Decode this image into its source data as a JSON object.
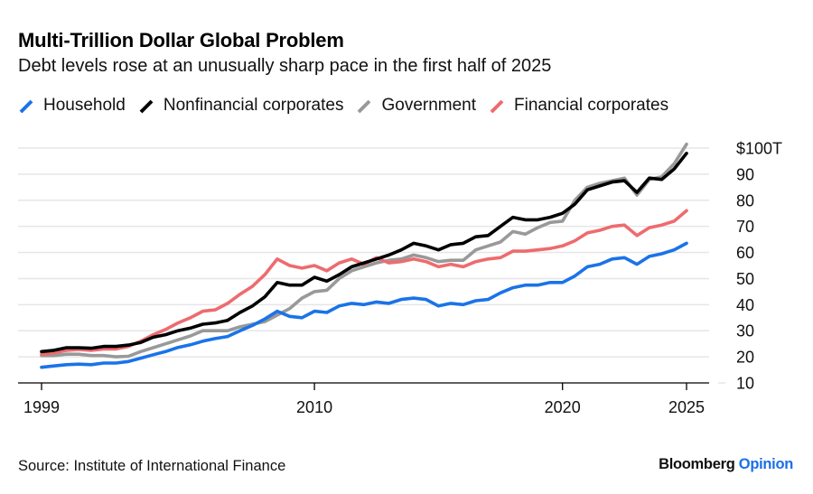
{
  "header": {
    "title": "Multi-Trillion Dollar Global Problem",
    "subtitle": "Debt levels rose at an unusually sharp pace in the first half of 2025"
  },
  "footer": {
    "source": "Source: Institute of International Finance",
    "brand_primary": "Bloomberg",
    "brand_secondary": "Opinion"
  },
  "colors": {
    "household": "#1a73e8",
    "nonfinancial": "#000000",
    "government": "#999999",
    "financial": "#ee6b6e",
    "grid": "#e6e6e6",
    "axis": "#000000"
  },
  "chart_data": {
    "type": "line",
    "title": "Multi-Trillion Dollar Global Problem",
    "subtitle": "Debt levels rose at an unusually sharp pace in the first half of 2025",
    "xlabel": "",
    "ylabel": "",
    "y_unit_prefix": "$",
    "y_unit_suffix": "T",
    "xlim": [
      1999,
      2025.6
    ],
    "ylim": [
      10,
      100
    ],
    "x_ticks": [
      1999,
      2010,
      2020,
      2025
    ],
    "x_tick_labels": [
      "1999",
      "2010",
      "2020",
      "2025"
    ],
    "y_ticks": [
      10,
      20,
      30,
      40,
      50,
      60,
      70,
      80,
      90,
      100
    ],
    "y_tick_labels": [
      "10",
      "20",
      "30",
      "40",
      "50",
      "60",
      "70",
      "80",
      "90",
      "$100T"
    ],
    "grid": true,
    "legend_position": "top-left",
    "x": [
      1999.0,
      1999.5,
      2000.0,
      2000.5,
      2001.0,
      2001.5,
      2002.0,
      2002.5,
      2003.0,
      2003.5,
      2004.0,
      2004.5,
      2005.0,
      2005.5,
      2006.0,
      2006.5,
      2007.0,
      2007.5,
      2008.0,
      2008.5,
      2009.0,
      2009.5,
      2010.0,
      2010.5,
      2011.0,
      2011.5,
      2012.0,
      2012.5,
      2013.0,
      2013.5,
      2014.0,
      2014.5,
      2015.0,
      2015.5,
      2016.0,
      2016.5,
      2017.0,
      2017.5,
      2018.0,
      2018.5,
      2019.0,
      2019.5,
      2020.0,
      2020.5,
      2021.0,
      2021.5,
      2022.0,
      2022.5,
      2023.0,
      2023.5,
      2024.0,
      2024.5,
      2025.0
    ],
    "series": [
      {
        "name": "Household",
        "color": "#1a73e8",
        "values": [
          16.0,
          16.5,
          17.0,
          17.2,
          17.0,
          17.6,
          17.6,
          18.2,
          19.5,
          20.8,
          22.0,
          23.6,
          24.6,
          26.0,
          27.0,
          27.8,
          30.0,
          32.0,
          34.5,
          37.5,
          35.5,
          35.0,
          37.5,
          37.0,
          39.5,
          40.5,
          40.0,
          41.0,
          40.5,
          42.0,
          42.5,
          42.0,
          39.5,
          40.5,
          40.0,
          41.5,
          42.0,
          44.5,
          46.5,
          47.5,
          47.5,
          48.5,
          48.5,
          51.0,
          54.5,
          55.5,
          57.5,
          58.0,
          55.5,
          58.5,
          59.5,
          61.0,
          63.5
        ]
      },
      {
        "name": "Nonfinancial corporates",
        "color": "#000000",
        "values": [
          22.0,
          22.5,
          23.5,
          23.5,
          23.3,
          24.0,
          24.0,
          24.5,
          25.5,
          27.5,
          28.5,
          30.0,
          31.0,
          32.5,
          33.0,
          34.0,
          37.0,
          39.5,
          43.0,
          48.5,
          47.5,
          47.5,
          50.5,
          49.0,
          51.5,
          54.5,
          56.0,
          57.5,
          59.0,
          61.0,
          63.5,
          62.5,
          61.0,
          63.0,
          63.5,
          66.0,
          66.5,
          70.0,
          73.5,
          72.5,
          72.5,
          73.5,
          75.0,
          78.5,
          84.0,
          85.5,
          87.0,
          87.5,
          83.0,
          88.5,
          88.0,
          92.0,
          98.0
        ]
      },
      {
        "name": "Government",
        "color": "#999999",
        "values": [
          20.5,
          20.5,
          21.0,
          21.0,
          20.5,
          20.5,
          20.0,
          20.2,
          22.0,
          23.5,
          25.0,
          26.5,
          28.0,
          30.0,
          30.0,
          30.0,
          31.5,
          32.5,
          33.5,
          36.0,
          38.5,
          42.5,
          45.0,
          45.5,
          50.0,
          53.0,
          54.5,
          56.0,
          57.0,
          57.5,
          59.0,
          58.0,
          56.5,
          57.0,
          57.0,
          61.0,
          62.5,
          64.0,
          68.0,
          67.0,
          69.5,
          71.5,
          72.0,
          80.0,
          85.0,
          86.5,
          87.5,
          88.5,
          82.0,
          88.0,
          89.0,
          94.0,
          101.5
        ]
      },
      {
        "name": "Financial corporates",
        "color": "#ee6b6e",
        "values": [
          21.0,
          21.5,
          22.5,
          22.8,
          22.5,
          23.0,
          23.0,
          24.0,
          26.0,
          28.5,
          30.5,
          33.0,
          35.0,
          37.5,
          38.0,
          40.5,
          44.0,
          47.0,
          51.5,
          57.5,
          55.0,
          54.0,
          55.0,
          53.0,
          56.0,
          57.5,
          55.5,
          58.0,
          56.0,
          56.5,
          57.5,
          56.5,
          54.5,
          55.5,
          54.5,
          56.5,
          57.5,
          58.0,
          60.5,
          60.5,
          61.0,
          61.5,
          62.5,
          64.5,
          67.5,
          68.5,
          70.0,
          70.5,
          66.5,
          69.5,
          70.5,
          72.0,
          76.0
        ]
      }
    ]
  },
  "legend": [
    {
      "label": "Household",
      "color": "#1a73e8"
    },
    {
      "label": "Nonfinancial corporates",
      "color": "#000000"
    },
    {
      "label": "Government",
      "color": "#999999"
    },
    {
      "label": "Financial corporates",
      "color": "#ee6b6e"
    }
  ]
}
